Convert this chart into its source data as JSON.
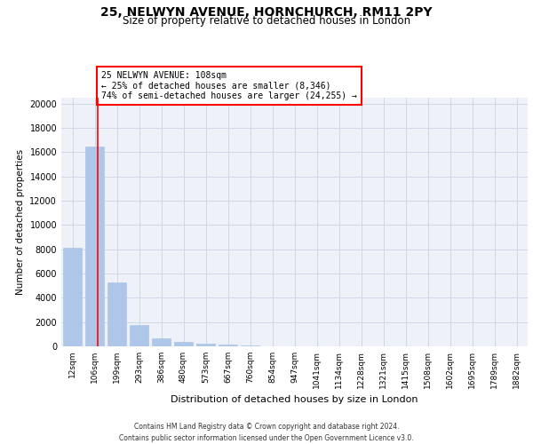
{
  "title_line1": "25, NELWYN AVENUE, HORNCHURCH, RM11 2PY",
  "title_line2": "Size of property relative to detached houses in London",
  "xlabel": "Distribution of detached houses by size in London",
  "ylabel": "Number of detached properties",
  "categories": [
    "12sqm",
    "106sqm",
    "199sqm",
    "293sqm",
    "386sqm",
    "480sqm",
    "573sqm",
    "667sqm",
    "760sqm",
    "854sqm",
    "947sqm",
    "1041sqm",
    "1134sqm",
    "1228sqm",
    "1321sqm",
    "1415sqm",
    "1508sqm",
    "1602sqm",
    "1695sqm",
    "1789sqm",
    "1882sqm"
  ],
  "values": [
    8100,
    16500,
    5300,
    1750,
    650,
    330,
    190,
    140,
    100,
    0,
    0,
    0,
    0,
    0,
    0,
    0,
    0,
    0,
    0,
    0,
    0
  ],
  "bar_color": "#aec6e8",
  "bar_edge_color": "#aec6e8",
  "vline_x_index": 1.15,
  "annotation_line1": "25 NELWYN AVENUE: 108sqm",
  "annotation_line2": "← 25% of detached houses are smaller (8,346)",
  "annotation_line3": "74% of semi-detached houses are larger (24,255) →",
  "annotation_box_color": "white",
  "annotation_box_edge_color": "red",
  "vline_color": "red",
  "grid_color": "#d0d8e8",
  "background_color": "#eef2f8",
  "ylim": [
    0,
    20500
  ],
  "yticks": [
    0,
    2000,
    4000,
    6000,
    8000,
    10000,
    12000,
    14000,
    16000,
    18000,
    20000
  ],
  "footer_line1": "Contains HM Land Registry data © Crown copyright and database right 2024.",
  "footer_line2": "Contains public sector information licensed under the Open Government Licence v3.0."
}
